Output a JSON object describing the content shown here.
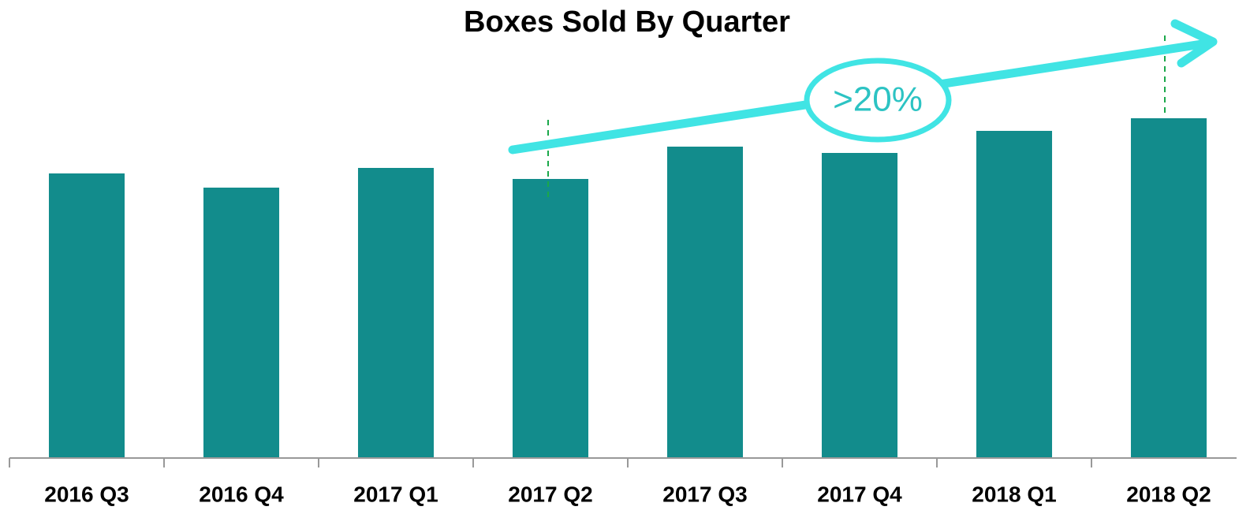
{
  "chart_data": {
    "type": "bar",
    "title": "Boxes Sold By Quarter",
    "categories": [
      "2016 Q3",
      "2016 Q4",
      "2017 Q1",
      "2017 Q2",
      "2017 Q3",
      "2017 Q4",
      "2018 Q1",
      "2018 Q2"
    ],
    "values": [
      361,
      343,
      368,
      354,
      395,
      387,
      415,
      431
    ],
    "color": "#128c8c",
    "ylim": [
      0,
      500
    ],
    "annotation": ">20%"
  }
}
